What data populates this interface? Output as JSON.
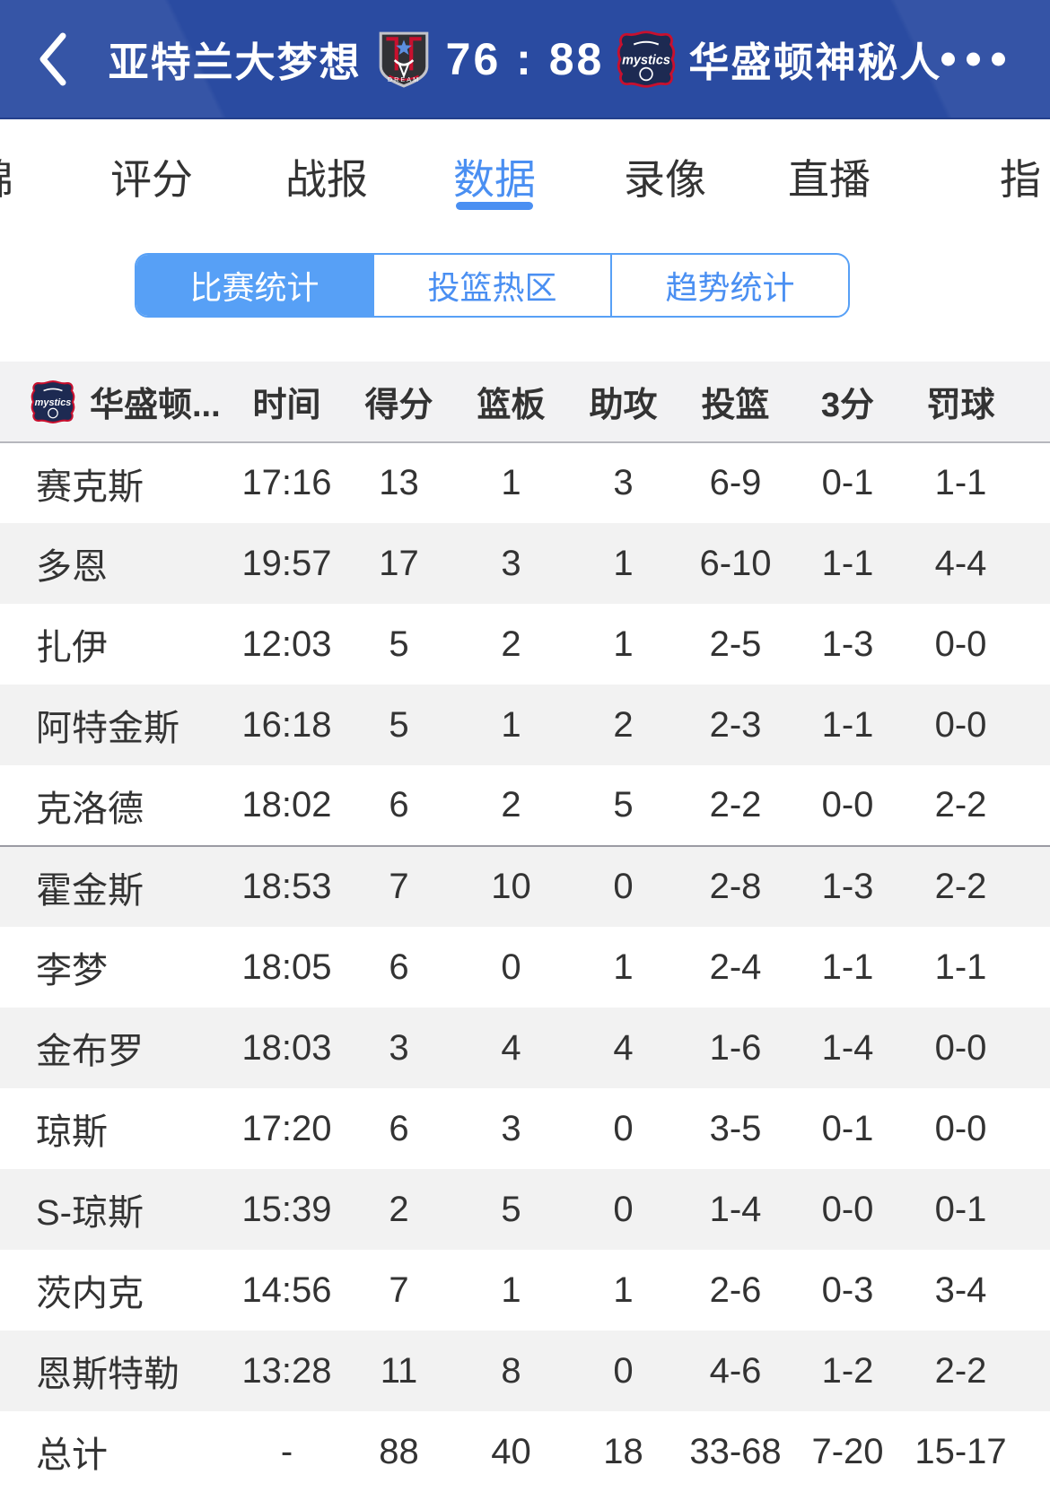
{
  "colors": {
    "header_bg": "#2a4ba1",
    "accent_blue": "#4a8ff2",
    "subtab_selected_bg": "#57a0f6",
    "row_alt_bg": "#f2f2f2",
    "bench_divider": "#9b9ba3"
  },
  "icons": {
    "back": "chevron-left-icon",
    "more": "ellipsis-icon",
    "home_logo": "atlanta-dream-logo",
    "away_logo": "washington-mystics-logo"
  },
  "header": {
    "home_team": "亚特兰大梦想",
    "score": "76 : 88",
    "away_team": "华盛顿神秘人"
  },
  "nav_tabs": [
    {
      "label": "锦",
      "active": false
    },
    {
      "label": "评分",
      "active": false
    },
    {
      "label": "战报",
      "active": false
    },
    {
      "label": "数据",
      "active": true
    },
    {
      "label": "录像",
      "active": false
    },
    {
      "label": "直播",
      "active": false
    },
    {
      "label": "指",
      "active": false
    }
  ],
  "sub_tabs": [
    {
      "label": "比赛统计",
      "selected": true
    },
    {
      "label": "投篮热区",
      "selected": false
    },
    {
      "label": "趋势统计",
      "selected": false
    }
  ],
  "stats_table": {
    "team_label": "华盛顿...",
    "columns": [
      "时间",
      "得分",
      "篮板",
      "助攻",
      "投篮",
      "3分",
      "罚球"
    ],
    "starters_count": 5,
    "rows": [
      {
        "name": "赛克斯",
        "cells": [
          "17:16",
          "13",
          "1",
          "3",
          "6-9",
          "0-1",
          "1-1"
        ]
      },
      {
        "name": "多恩",
        "cells": [
          "19:57",
          "17",
          "3",
          "1",
          "6-10",
          "1-1",
          "4-4"
        ]
      },
      {
        "name": "扎伊",
        "cells": [
          "12:03",
          "5",
          "2",
          "1",
          "2-5",
          "1-3",
          "0-0"
        ]
      },
      {
        "name": "阿特金斯",
        "cells": [
          "16:18",
          "5",
          "1",
          "2",
          "2-3",
          "1-1",
          "0-0"
        ]
      },
      {
        "name": "克洛德",
        "cells": [
          "18:02",
          "6",
          "2",
          "5",
          "2-2",
          "0-0",
          "2-2"
        ]
      },
      {
        "name": "霍金斯",
        "cells": [
          "18:53",
          "7",
          "10",
          "0",
          "2-8",
          "1-3",
          "2-2"
        ]
      },
      {
        "name": "李梦",
        "cells": [
          "18:05",
          "6",
          "0",
          "1",
          "2-4",
          "1-1",
          "1-1"
        ]
      },
      {
        "name": "金布罗",
        "cells": [
          "18:03",
          "3",
          "4",
          "4",
          "1-6",
          "1-4",
          "0-0"
        ]
      },
      {
        "name": "琼斯",
        "cells": [
          "17:20",
          "6",
          "3",
          "0",
          "3-5",
          "0-1",
          "0-0"
        ]
      },
      {
        "name": "S-琼斯",
        "cells": [
          "15:39",
          "2",
          "5",
          "0",
          "1-4",
          "0-0",
          "0-1"
        ]
      },
      {
        "name": "茨内克",
        "cells": [
          "14:56",
          "7",
          "1",
          "1",
          "2-6",
          "0-3",
          "3-4"
        ]
      },
      {
        "name": "恩斯特勒",
        "cells": [
          "13:28",
          "11",
          "8",
          "0",
          "4-6",
          "1-2",
          "2-2"
        ]
      },
      {
        "name": "总计",
        "cells": [
          "-",
          "88",
          "40",
          "18",
          "33-68",
          "7-20",
          "15-17"
        ],
        "is_total": true
      }
    ]
  }
}
